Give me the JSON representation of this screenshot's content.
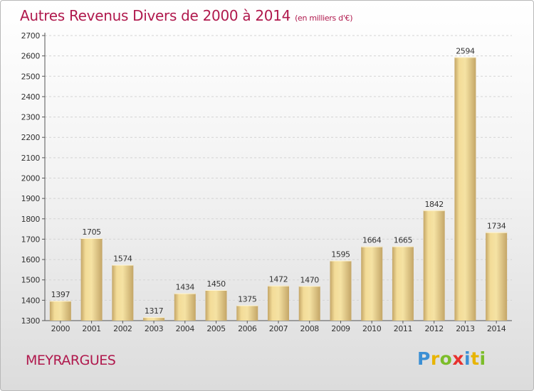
{
  "header": {
    "title": "Autres Revenus Divers de 2000 à 2014",
    "subtitle": "(en milliers d'€)"
  },
  "footer": {
    "location": "MEYRARGUES",
    "brand": [
      "P",
      "r",
      "o",
      "x",
      "i",
      "t",
      "i"
    ],
    "brand_colors": [
      "#3b8fd4",
      "#e8b400",
      "#7cbd2a",
      "#e8312e",
      "#3b8fd4",
      "#e8b400",
      "#7cbd2a"
    ]
  },
  "colors": {
    "title": "#b0194d",
    "bar_light": "#f5e2a3",
    "bar_dark": "#c4a667",
    "grid": "#d4d4d4"
  },
  "chart_data": {
    "type": "bar",
    "title": "Autres Revenus Divers de 2000 à 2014",
    "subtitle": "(en milliers d'€)",
    "xlabel": "",
    "ylabel": "",
    "categories": [
      "2000",
      "2001",
      "2002",
      "2003",
      "2004",
      "2005",
      "2006",
      "2007",
      "2008",
      "2009",
      "2010",
      "2011",
      "2012",
      "2013",
      "2014"
    ],
    "values": [
      1397,
      1705,
      1574,
      1317,
      1434,
      1450,
      1375,
      1472,
      1470,
      1595,
      1664,
      1665,
      1842,
      2594,
      1734
    ],
    "ylim": [
      1300,
      2700
    ],
    "yticks": [
      1300,
      1400,
      1500,
      1600,
      1700,
      1800,
      1900,
      2000,
      2100,
      2200,
      2300,
      2400,
      2500,
      2600,
      2700
    ],
    "grid": true,
    "data_labels": true
  }
}
